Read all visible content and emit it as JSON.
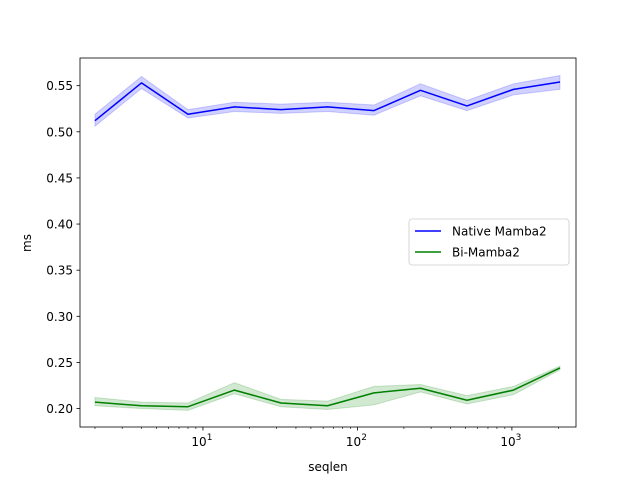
{
  "chart_data": {
    "type": "line",
    "title": "",
    "xlabel": "seqlen",
    "ylabel": "ms",
    "x_scale": "log",
    "xlim": [
      1.6,
      2600
    ],
    "ylim": [
      0.18,
      0.58
    ],
    "x_major_ticks": [
      10,
      100,
      1000
    ],
    "x_tick_labels": [
      {
        "base": "10",
        "exp": "1"
      },
      {
        "base": "10",
        "exp": "2"
      },
      {
        "base": "10",
        "exp": "3"
      }
    ],
    "y_ticks": [
      0.2,
      0.25,
      0.3,
      0.35,
      0.4,
      0.45,
      0.5,
      0.55
    ],
    "y_tick_labels": [
      "0.20",
      "0.25",
      "0.30",
      "0.35",
      "0.40",
      "0.45",
      "0.50",
      "0.55"
    ],
    "grid": false,
    "legend": {
      "position": "center-right"
    },
    "x": [
      2,
      4,
      8,
      16,
      32,
      64,
      128,
      256,
      512,
      1024,
      2048
    ],
    "series": [
      {
        "name": "Native Mamba2",
        "color": "#0000ff",
        "values": [
          0.512,
          0.553,
          0.519,
          0.527,
          0.524,
          0.527,
          0.523,
          0.545,
          0.528,
          0.546,
          0.554
        ],
        "lower": [
          0.506,
          0.547,
          0.515,
          0.522,
          0.52,
          0.522,
          0.518,
          0.539,
          0.523,
          0.54,
          0.546
        ],
        "upper": [
          0.519,
          0.56,
          0.524,
          0.532,
          0.53,
          0.532,
          0.529,
          0.552,
          0.534,
          0.552,
          0.561
        ]
      },
      {
        "name": "Bi-Mamba2",
        "color": "#008000",
        "values": [
          0.207,
          0.203,
          0.202,
          0.22,
          0.206,
          0.203,
          0.217,
          0.222,
          0.209,
          0.22,
          0.244
        ],
        "lower": [
          0.203,
          0.2,
          0.198,
          0.216,
          0.202,
          0.199,
          0.204,
          0.218,
          0.205,
          0.215,
          0.242
        ],
        "upper": [
          0.212,
          0.207,
          0.206,
          0.228,
          0.21,
          0.208,
          0.224,
          0.226,
          0.214,
          0.224,
          0.246
        ]
      }
    ]
  }
}
